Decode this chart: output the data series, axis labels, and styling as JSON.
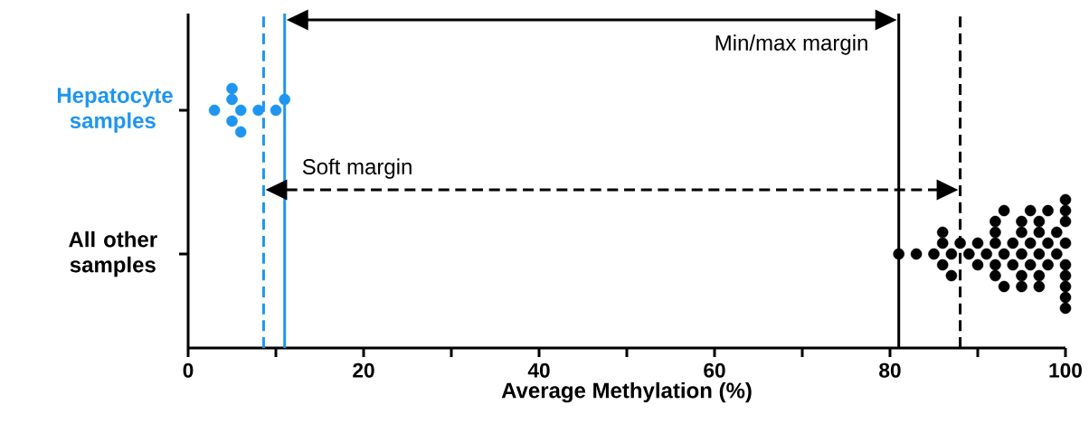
{
  "chart_data": {
    "type": "scatter",
    "orientation": "horizontal",
    "categories": [
      "Hepatocyte samples",
      "All other samples"
    ],
    "xlabel": "Average Methylation (%)",
    "xlim": [
      0,
      100
    ],
    "xticks": [
      0,
      {
        "value": 10,
        "label": null
      },
      20,
      {
        "value": 30,
        "label": null
      },
      40,
      {
        "value": 50,
        "label": null
      },
      60,
      {
        "value": 70,
        "label": null
      },
      80,
      {
        "value": 90,
        "label": null
      },
      100
    ],
    "marker": "circle",
    "grid": false,
    "series": [
      {
        "color": "#1e96f0",
        "x": [
          "Hepatocyte samples",
          "Hepatocyte samples",
          "Hepatocyte samples",
          "Hepatocyte samples",
          "Hepatocyte samples",
          "Hepatocyte samples",
          "Hepatocyte samples",
          "Hepatocyte samples",
          "Hepatocyte samples"
        ],
        "values": [
          3,
          6,
          8,
          10,
          5,
          5,
          11,
          5,
          6
        ]
      },
      {
        "color": "#000000",
        "x": [
          "All other samples",
          "All other samples",
          "All other samples",
          "All other samples",
          "All other samples",
          "All other samples",
          "All other samples",
          "All other samples",
          "All other samples",
          "All other samples",
          "All other samples",
          "All other samples",
          "All other samples",
          "All other samples",
          "All other samples",
          "All other samples",
          "All other samples",
          "All other samples",
          "All other samples",
          "All other samples",
          "All other samples",
          "All other samples",
          "All other samples",
          "All other samples",
          "All other samples",
          "All other samples",
          "All other samples",
          "All other samples",
          "All other samples",
          "All other samples",
          "All other samples",
          "All other samples",
          "All other samples",
          "All other samples",
          "All other samples",
          "All other samples",
          "All other samples",
          "All other samples",
          "All other samples",
          "All other samples",
          "All other samples",
          "All other samples",
          "All other samples",
          "All other samples",
          "All other samples",
          "All other samples",
          "All other samples",
          "All other samples",
          "All other samples",
          "All other samples"
        ],
        "values": [
          81,
          83,
          85,
          86,
          86,
          86,
          87,
          87,
          88,
          89,
          90,
          90,
          91,
          92,
          92,
          92,
          92,
          92,
          93,
          93,
          93,
          94,
          94,
          95,
          95,
          95,
          95,
          95,
          96,
          96,
          96,
          97,
          97,
          97,
          97,
          97,
          98,
          98,
          98,
          99,
          99,
          100,
          100,
          100,
          100,
          100,
          100,
          100,
          100,
          100
        ]
      }
    ],
    "ref_lines": [
      {
        "axis": "x",
        "value": 8.6,
        "color": "#1e96f0",
        "line_style": "dashed"
      },
      {
        "axis": "x",
        "value": 11,
        "color": "#1e96f0",
        "line_style": "solid"
      },
      {
        "axis": "x",
        "value": 81,
        "color": "#000000",
        "line_style": "solid"
      },
      {
        "axis": "x",
        "value": 88,
        "color": "#000000",
        "line_style": "dashed"
      }
    ],
    "annotations": [
      "Min/max margin",
      "Soft margin"
    ]
  }
}
